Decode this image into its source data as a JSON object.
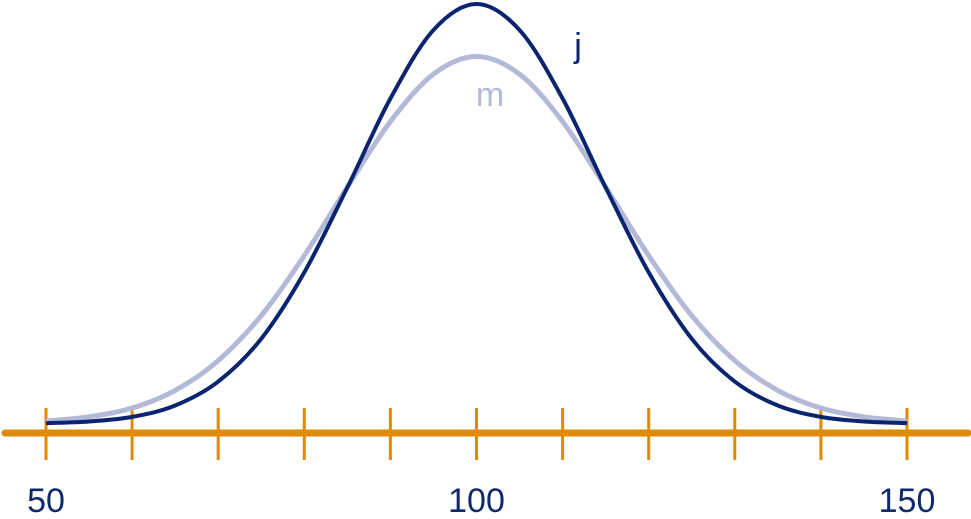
{
  "chart_data": {
    "type": "line",
    "x": [
      50,
      55,
      60,
      65,
      70,
      75,
      80,
      85,
      90,
      95,
      100,
      105,
      110,
      115,
      120,
      125,
      130,
      135,
      140,
      145,
      150
    ],
    "series": [
      {
        "name": "m",
        "color": "#b3b9d6",
        "values": [
          0.007,
          0.017,
          0.038,
          0.08,
          0.151,
          0.258,
          0.401,
          0.564,
          0.72,
          0.833,
          0.875,
          0.833,
          0.72,
          0.564,
          0.401,
          0.258,
          0.151,
          0.08,
          0.038,
          0.017,
          0.007
        ]
      },
      {
        "name": "j",
        "color": "#0a2470",
        "values": [
          0.002,
          0.006,
          0.017,
          0.044,
          0.101,
          0.203,
          0.361,
          0.563,
          0.775,
          0.938,
          1.0,
          0.938,
          0.775,
          0.563,
          0.361,
          0.203,
          0.101,
          0.044,
          0.017,
          0.006,
          0.002
        ]
      }
    ],
    "xlim": [
      50,
      150
    ],
    "ylim": [
      0,
      1
    ],
    "xticks": [
      50,
      100,
      150
    ],
    "minor_xticks": [
      60,
      70,
      80,
      90,
      110,
      120,
      130,
      140
    ],
    "axis_color": "#e08a00",
    "label_color": "#0f2a6b"
  }
}
